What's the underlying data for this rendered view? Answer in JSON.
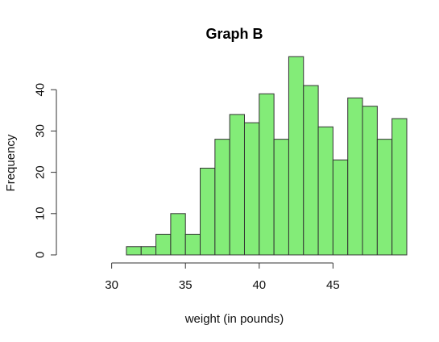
{
  "chart_data": {
    "type": "bar",
    "title": "Graph B",
    "xlabel": "weight (in pounds)",
    "ylabel": "Frequency",
    "bin_width": 1,
    "bin_starts": [
      31,
      32,
      33,
      34,
      35,
      36,
      37,
      38,
      39,
      40,
      41,
      42,
      43,
      44,
      45,
      46,
      47,
      48,
      49
    ],
    "values": [
      2,
      2,
      5,
      10,
      5,
      21,
      28,
      34,
      32,
      39,
      28,
      48,
      41,
      31,
      23,
      38,
      36,
      28,
      33
    ],
    "xlim": [
      26.8,
      50
    ],
    "ylim": [
      0,
      50
    ],
    "x_ticks": [
      "30",
      "35",
      "40",
      "45"
    ],
    "y_ticks": [
      "0",
      "10",
      "20",
      "30",
      "40"
    ],
    "bar_color": "#83ec78",
    "grid": false
  }
}
